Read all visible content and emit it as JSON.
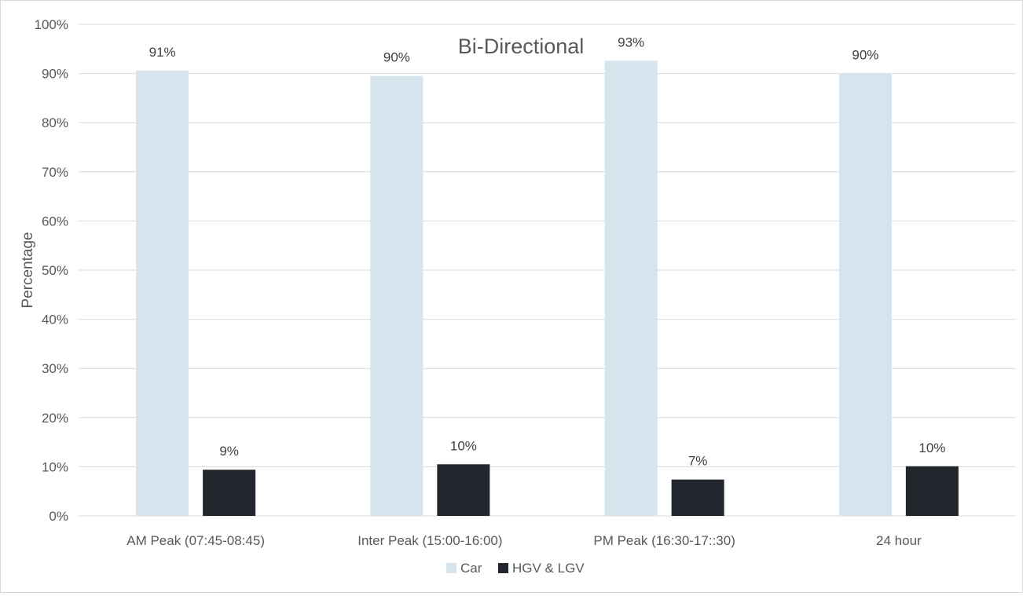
{
  "chart_data": {
    "type": "bar",
    "title": "Bi-Directional",
    "xlabel": "",
    "ylabel": "Percentage",
    "ylim": [
      0,
      100
    ],
    "yticks": [
      "0%",
      "10%",
      "20%",
      "30%",
      "40%",
      "50%",
      "60%",
      "70%",
      "80%",
      "90%",
      "100%"
    ],
    "grid": true,
    "legend_position": "bottom",
    "categories": [
      "AM Peak (07:45-08:45)",
      "Inter Peak (15:00-16:00)",
      "PM Peak (16:30-17::30)",
      "24 hour"
    ],
    "series": [
      {
        "name": "Car",
        "color": "#d6e4ee",
        "values": [
          90.6,
          89.5,
          92.6,
          90.0
        ],
        "labels": [
          "91%",
          "90%",
          "93%",
          "90%"
        ]
      },
      {
        "name": "HGV & LGV",
        "color": "#22272e",
        "values": [
          9.4,
          10.5,
          7.4,
          10.1
        ],
        "labels": [
          "9%",
          "10%",
          "7%",
          "10%"
        ]
      }
    ]
  }
}
